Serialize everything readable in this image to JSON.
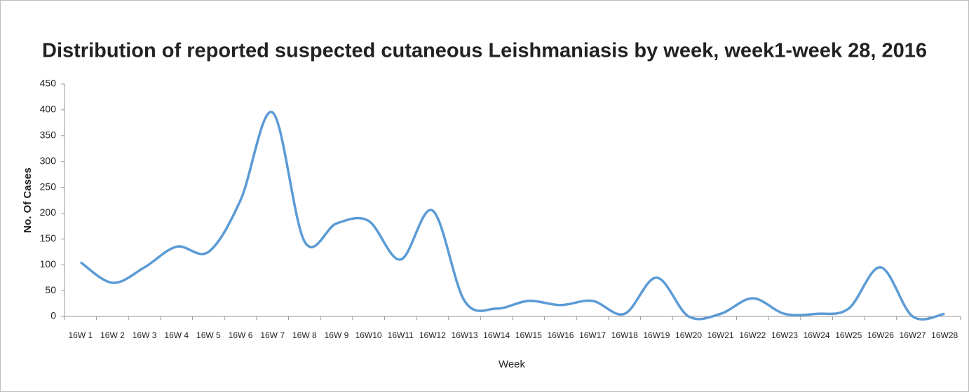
{
  "chart_data": {
    "type": "line",
    "title": "Distribution of reported suspected cutaneous Leishmaniasis by week, week1-week 28, 2016",
    "x_label": "Week",
    "y_label": "No. Of Cases",
    "categories": [
      "16W 1",
      "16W 2",
      "16W 3",
      "16W 4",
      "16W 5",
      "16W 6",
      "16W 7",
      "16W 8",
      "16W 9",
      "16W10",
      "16W11",
      "16W12",
      "16W13",
      "16W14",
      "16W15",
      "16W16",
      "16W17",
      "16W18",
      "16W19",
      "16W20",
      "16W21",
      "16W22",
      "16W23",
      "16W24",
      "16W25",
      "16W26",
      "16W27",
      "16W28"
    ],
    "series": [
      {
        "name": "Cases",
        "color": "#5b9bd5",
        "values": [
          105,
          65,
          95,
          135,
          125,
          225,
          395,
          145,
          180,
          185,
          110,
          205,
          30,
          15,
          30,
          22,
          30,
          5,
          75,
          0,
          5,
          35,
          5,
          5,
          15,
          95,
          0,
          5
        ]
      }
    ],
    "ylim": [
      0,
      450
    ],
    "yticks": [
      0,
      50,
      100,
      150,
      200,
      250,
      300,
      350,
      400,
      450
    ],
    "grid": false,
    "smooth": true
  }
}
